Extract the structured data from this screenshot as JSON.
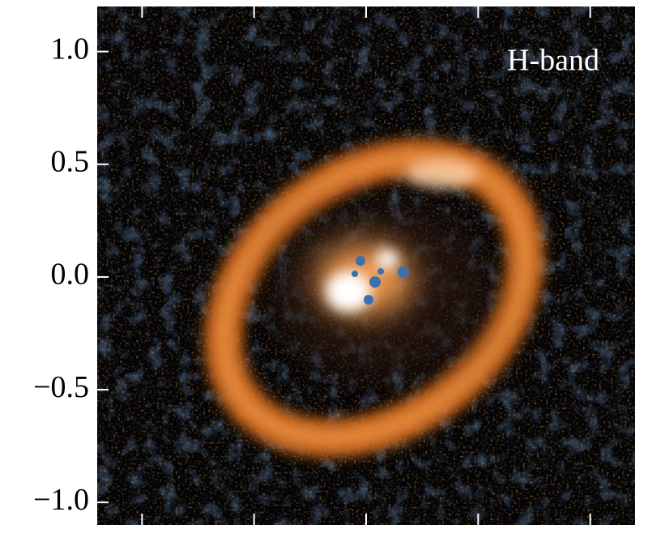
{
  "chart_data": {
    "type": "image",
    "annotation": "H-band",
    "xlim": [
      -1.2,
      1.2
    ],
    "xticks": [
      -1,
      -0.5,
      0,
      0.5,
      1
    ],
    "ylim": [
      -1.1,
      1.2
    ],
    "yticks": [
      {
        "value": 1,
        "label": "1.0"
      },
      {
        "value": 0.5,
        "label": "0.5"
      },
      {
        "value": 0,
        "label": "0.0"
      },
      {
        "value": -0.5,
        "label": "−0.5"
      },
      {
        "value": -1,
        "label": "−1.0"
      }
    ]
  }
}
